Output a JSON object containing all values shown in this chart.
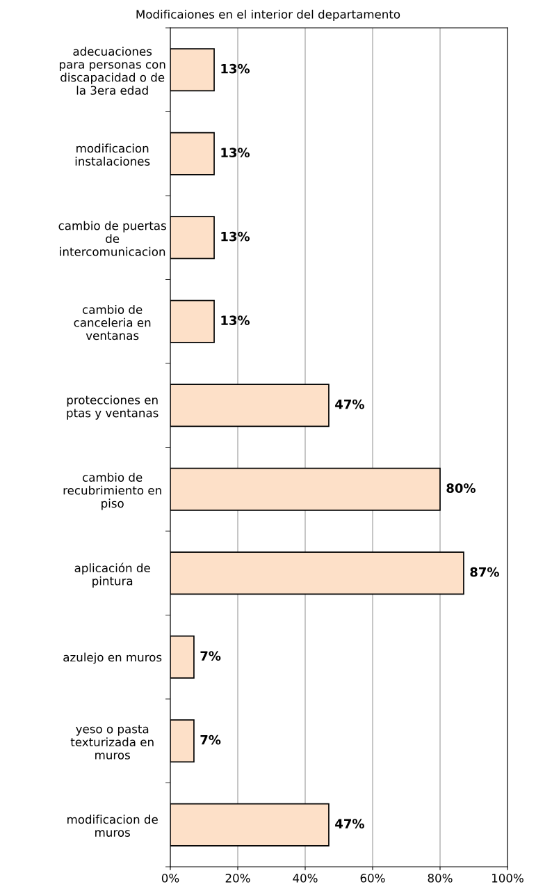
{
  "chart_data": {
    "type": "bar",
    "orientation": "horizontal",
    "title": "Modificaiones en el interior del departamento",
    "categories": [
      "adecuaciones\npara personas con\ndiscapacidad o de\nla 3era edad",
      "modificacion\ninstalaciones",
      "cambio de puertas\nde\nintercomunicacion",
      "cambio de\ncanceleria en\nventanas",
      "protecciones en\nptas y ventanas",
      "cambio de\nrecubrimiento en\npiso",
      "aplicación de\npintura",
      "azulejo en muros",
      "yeso o pasta\ntexturizada en\nmuros",
      "modificacion de\nmuros"
    ],
    "values": [
      13,
      13,
      13,
      13,
      47,
      80,
      87,
      7,
      7,
      47
    ],
    "value_labels": [
      "13%",
      "13%",
      "13%",
      "13%",
      "47%",
      "80%",
      "87%",
      "7%",
      "7%",
      "47%"
    ],
    "color": "#fde0c8",
    "xlim": [
      0,
      100
    ],
    "xticks": [
      {
        "value": 0,
        "label": "0%"
      },
      {
        "value": 20,
        "label": "20%"
      },
      {
        "value": 40,
        "label": "40%"
      },
      {
        "value": 60,
        "label": "60%"
      },
      {
        "value": 80,
        "label": "80%"
      },
      {
        "value": 100,
        "label": "100%"
      }
    ],
    "grid": "x"
  }
}
